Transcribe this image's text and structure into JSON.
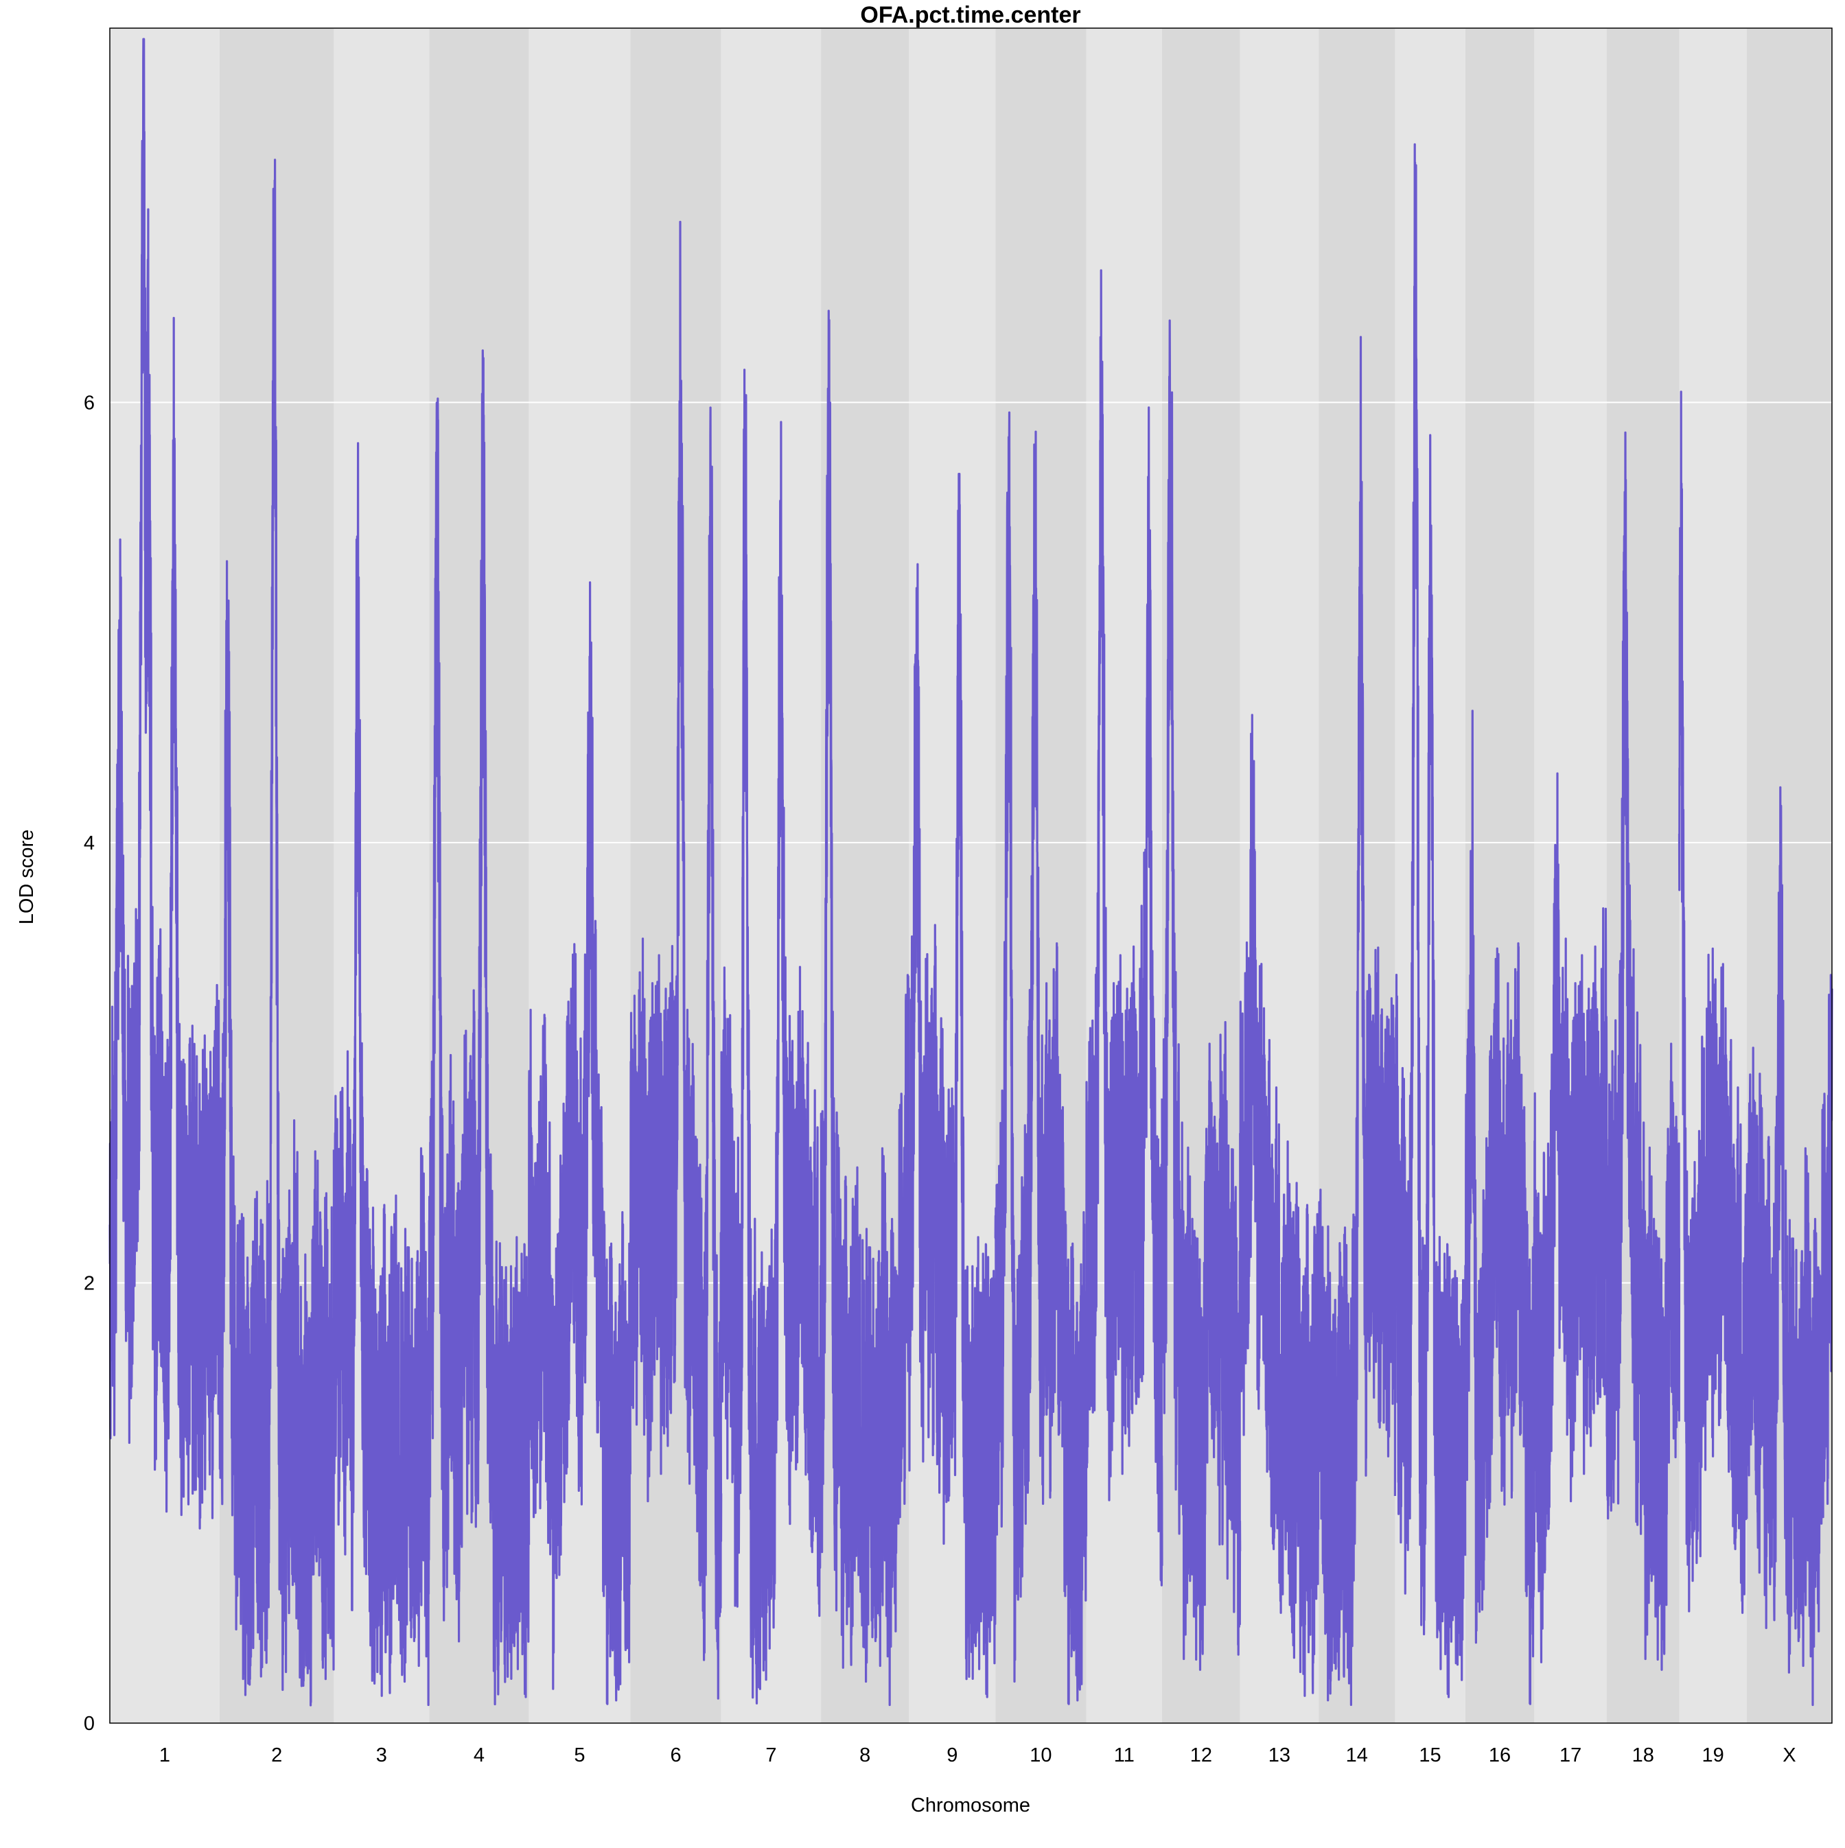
{
  "chart_data": {
    "type": "line",
    "title": "OFA.pct.time.center",
    "xlabel": "Chromosome",
    "ylabel": "LOD score",
    "ylim": [
      0,
      7.7
    ],
    "yticks": [
      0,
      2,
      4,
      6
    ],
    "grid": true,
    "legend": "none",
    "colors": {
      "line": "#6a5acd",
      "band_light": "#e5e5e5",
      "band_dark": "#d9d9d9",
      "grid": "#ffffff"
    },
    "chromosomes": [
      {
        "name": "1",
        "start": 0,
        "end": 197
      },
      {
        "name": "2",
        "start": 197,
        "end": 402
      },
      {
        "name": "3",
        "start": 402,
        "end": 573
      },
      {
        "name": "4",
        "start": 573,
        "end": 752
      },
      {
        "name": "5",
        "start": 752,
        "end": 934
      },
      {
        "name": "6",
        "start": 934,
        "end": 1097
      },
      {
        "name": "7",
        "start": 1097,
        "end": 1276
      },
      {
        "name": "8",
        "start": 1276,
        "end": 1434
      },
      {
        "name": "9",
        "start": 1434,
        "end": 1589
      },
      {
        "name": "10",
        "start": 1589,
        "end": 1752
      },
      {
        "name": "11",
        "start": 1752,
        "end": 1888
      },
      {
        "name": "12",
        "start": 1888,
        "end": 2028
      },
      {
        "name": "13",
        "start": 2028,
        "end": 2169
      },
      {
        "name": "14",
        "start": 2169,
        "end": 2306
      },
      {
        "name": "15",
        "start": 2306,
        "end": 2432
      },
      {
        "name": "16",
        "start": 2432,
        "end": 2556
      },
      {
        "name": "17",
        "start": 2556,
        "end": 2686
      },
      {
        "name": "18",
        "start": 2686,
        "end": 2816
      },
      {
        "name": "19",
        "start": 2816,
        "end": 2937
      },
      {
        "name": "X",
        "start": 2937,
        "end": 3090
      }
    ],
    "peaks": [
      {
        "chr": "1",
        "pos": 60,
        "lod": 7.55
      },
      {
        "chr": "1",
        "pos": 69,
        "lod": 6.05
      },
      {
        "chr": "1",
        "pos": 115,
        "lod": 5.3
      },
      {
        "chr": "1",
        "pos": 18,
        "lod": 4.6
      },
      {
        "chr": "2",
        "pos": 98,
        "lod": 6.65
      },
      {
        "chr": "2",
        "pos": 14,
        "lod": 4.75
      },
      {
        "chr": "3",
        "pos": 43,
        "lod": 5.05
      },
      {
        "chr": "4",
        "pos": 14,
        "lod": 5.45
      },
      {
        "chr": "4",
        "pos": 97,
        "lod": 5.7
      },
      {
        "chr": "5",
        "pos": 110,
        "lod": 4.35
      },
      {
        "chr": "6",
        "pos": 90,
        "lod": 5.7
      },
      {
        "chr": "6",
        "pos": 144,
        "lod": 5.3
      },
      {
        "chr": "7",
        "pos": 43,
        "lod": 5.55
      },
      {
        "chr": "7",
        "pos": 107,
        "lod": 5.0
      },
      {
        "chr": "8",
        "pos": 14,
        "lod": 5.75
      },
      {
        "chr": "9",
        "pos": 14,
        "lod": 4.75
      },
      {
        "chr": "9",
        "pos": 90,
        "lod": 5.1
      },
      {
        "chr": "10",
        "pos": 24,
        "lod": 5.45
      },
      {
        "chr": "10",
        "pos": 71,
        "lod": 5.0
      },
      {
        "chr": "11",
        "pos": 27,
        "lod": 5.8
      },
      {
        "chr": "11",
        "pos": 112,
        "lod": 4.9
      },
      {
        "chr": "12",
        "pos": 15,
        "lod": 5.75
      },
      {
        "chr": "13",
        "pos": 23,
        "lod": 3.7
      },
      {
        "chr": "14",
        "pos": 75,
        "lod": 5.2
      },
      {
        "chr": "15",
        "pos": 37,
        "lod": 6.55
      },
      {
        "chr": "15",
        "pos": 64,
        "lod": 5.15
      },
      {
        "chr": "16",
        "pos": 12,
        "lod": 3.6
      },
      {
        "chr": "17",
        "pos": 40,
        "lod": 3.7
      },
      {
        "chr": "18",
        "pos": 33,
        "lod": 5.05
      },
      {
        "chr": "19",
        "pos": 3,
        "lod": 5.2
      },
      {
        "chr": "X",
        "pos": 61,
        "lod": 3.3
      }
    ]
  }
}
